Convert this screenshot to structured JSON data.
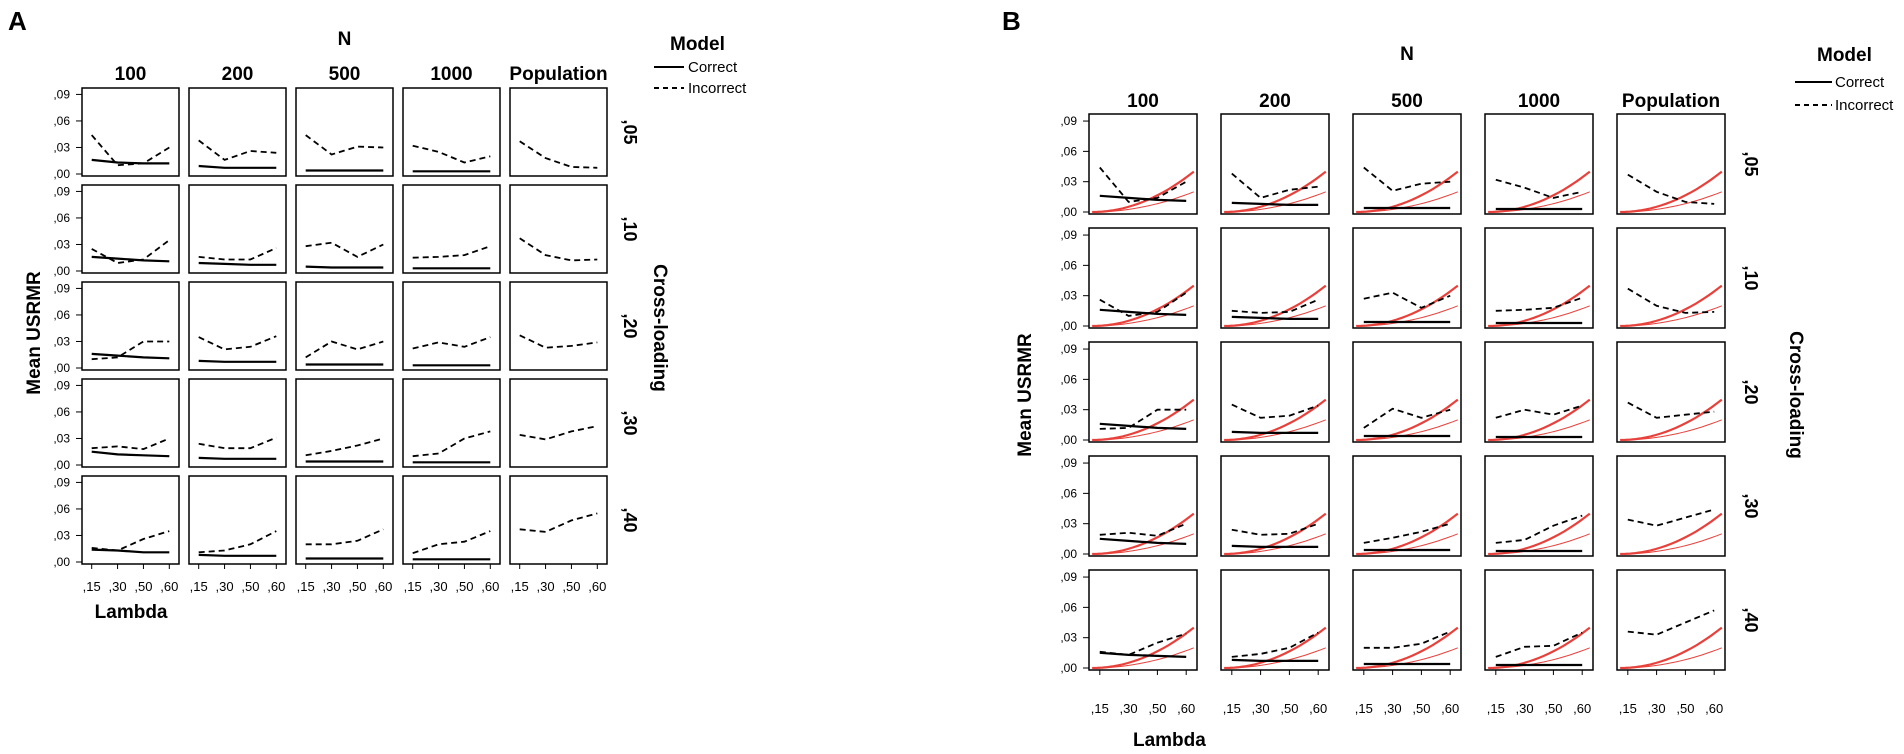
{
  "chart_data": [
    {
      "panel": "A",
      "type": "line",
      "title": "",
      "column_group_label": "N",
      "columns": [
        "100",
        "200",
        "500",
        "1000",
        "Population"
      ],
      "row_group_label": "Cross-loading",
      "rows": [
        ",05",
        ",10",
        ",20",
        ",30",
        ",40"
      ],
      "xlabel": "Lambda",
      "ylabel": "Mean USRMR",
      "x_categories": [
        ",15",
        ",30",
        ",50",
        ",60"
      ],
      "y_ticks": [
        ",00",
        ",03",
        ",06",
        ",09"
      ],
      "ylim": [
        0,
        0.095
      ],
      "legend": {
        "title": "Model",
        "entries": [
          "Correct",
          "Incorrect"
        ]
      },
      "cells": [
        {
          "row": ",05",
          "column": "100",
          "Correct": [
            0.016,
            0.013,
            0.012,
            0.012
          ],
          "Incorrect": [
            0.044,
            0.01,
            0.012,
            0.03
          ]
        },
        {
          "row": ",05",
          "column": "200",
          "Correct": [
            0.009,
            0.007,
            0.007,
            0.007
          ],
          "Incorrect": [
            0.038,
            0.016,
            0.026,
            0.024
          ]
        },
        {
          "row": ",05",
          "column": "500",
          "Correct": [
            0.004,
            0.004,
            0.004,
            0.004
          ],
          "Incorrect": [
            0.044,
            0.022,
            0.031,
            0.03
          ]
        },
        {
          "row": ",05",
          "column": "1000",
          "Correct": [
            0.003,
            0.003,
            0.003,
            0.003
          ],
          "Incorrect": [
            0.032,
            0.025,
            0.013,
            0.02
          ]
        },
        {
          "row": ",05",
          "column": "Population",
          "Incorrect": [
            0.037,
            0.018,
            0.008,
            0.007
          ]
        },
        {
          "row": ",10",
          "column": "100",
          "Correct": [
            0.016,
            0.014,
            0.012,
            0.011
          ],
          "Incorrect": [
            0.025,
            0.009,
            0.013,
            0.035
          ]
        },
        {
          "row": ",10",
          "column": "200",
          "Correct": [
            0.009,
            0.008,
            0.007,
            0.007
          ],
          "Incorrect": [
            0.016,
            0.013,
            0.013,
            0.026
          ]
        },
        {
          "row": ",10",
          "column": "500",
          "Correct": [
            0.005,
            0.004,
            0.004,
            0.004
          ],
          "Incorrect": [
            0.028,
            0.032,
            0.016,
            0.03
          ]
        },
        {
          "row": ",10",
          "column": "1000",
          "Correct": [
            0.003,
            0.003,
            0.003,
            0.003
          ],
          "Incorrect": [
            0.015,
            0.016,
            0.018,
            0.028
          ]
        },
        {
          "row": ",10",
          "column": "Population",
          "Incorrect": [
            0.037,
            0.018,
            0.012,
            0.013
          ]
        },
        {
          "row": ",20",
          "column": "100",
          "Correct": [
            0.016,
            0.014,
            0.012,
            0.011
          ],
          "Incorrect": [
            0.01,
            0.012,
            0.03,
            0.03
          ]
        },
        {
          "row": ",20",
          "column": "200",
          "Correct": [
            0.008,
            0.007,
            0.007,
            0.007
          ],
          "Incorrect": [
            0.035,
            0.021,
            0.024,
            0.036
          ]
        },
        {
          "row": ",20",
          "column": "500",
          "Correct": [
            0.004,
            0.004,
            0.004,
            0.004
          ],
          "Incorrect": [
            0.012,
            0.03,
            0.021,
            0.03
          ]
        },
        {
          "row": ",20",
          "column": "1000",
          "Correct": [
            0.003,
            0.003,
            0.003,
            0.003
          ],
          "Incorrect": [
            0.022,
            0.029,
            0.024,
            0.035
          ]
        },
        {
          "row": ",20",
          "column": "Population",
          "Incorrect": [
            0.037,
            0.023,
            0.025,
            0.029
          ]
        },
        {
          "row": ",30",
          "column": "100",
          "Correct": [
            0.015,
            0.012,
            0.011,
            0.01
          ],
          "Incorrect": [
            0.019,
            0.021,
            0.018,
            0.03
          ]
        },
        {
          "row": ",30",
          "column": "200",
          "Correct": [
            0.008,
            0.007,
            0.007,
            0.007
          ],
          "Incorrect": [
            0.024,
            0.019,
            0.019,
            0.031
          ]
        },
        {
          "row": ",30",
          "column": "500",
          "Correct": [
            0.004,
            0.004,
            0.004,
            0.004
          ],
          "Incorrect": [
            0.011,
            0.016,
            0.022,
            0.03
          ]
        },
        {
          "row": ",30",
          "column": "1000",
          "Correct": [
            0.003,
            0.003,
            0.003,
            0.003
          ],
          "Incorrect": [
            0.01,
            0.013,
            0.03,
            0.038
          ]
        },
        {
          "row": ",30",
          "column": "Population",
          "Incorrect": [
            0.034,
            0.029,
            0.038,
            0.044
          ]
        },
        {
          "row": ",40",
          "column": "100",
          "Correct": [
            0.014,
            0.013,
            0.011,
            0.011
          ],
          "Incorrect": [
            0.016,
            0.013,
            0.026,
            0.035
          ]
        },
        {
          "row": ",40",
          "column": "200",
          "Correct": [
            0.008,
            0.007,
            0.007,
            0.007
          ],
          "Incorrect": [
            0.011,
            0.013,
            0.02,
            0.035
          ]
        },
        {
          "row": ",40",
          "column": "500",
          "Correct": [
            0.004,
            0.004,
            0.004,
            0.004
          ],
          "Incorrect": [
            0.02,
            0.02,
            0.024,
            0.037
          ]
        },
        {
          "row": ",40",
          "column": "1000",
          "Correct": [
            0.003,
            0.003,
            0.003,
            0.003
          ],
          "Incorrect": [
            0.01,
            0.02,
            0.023,
            0.035
          ]
        },
        {
          "row": ",40",
          "column": "Population",
          "Incorrect": [
            0.037,
            0.034,
            0.047,
            0.055
          ]
        }
      ]
    },
    {
      "panel": "B",
      "type": "line",
      "title": "",
      "column_group_label": "N",
      "columns": [
        "100",
        "200",
        "500",
        "1000",
        "Population"
      ],
      "row_group_label": "Cross-loading",
      "rows": [
        ",05",
        ",10",
        ",20",
        ",30",
        ",40"
      ],
      "xlabel": "Lambda",
      "ylabel": "Mean USRMR",
      "x_categories": [
        ",15",
        ",30",
        ",50",
        ",60"
      ],
      "y_ticks": [
        ",00",
        ",03",
        ",06",
        ",09"
      ],
      "ylim": [
        0,
        0.095
      ],
      "legend": {
        "title": "Model",
        "entries": [
          "Correct",
          "Incorrect"
        ]
      },
      "reference_curves": {
        "color": "#e8413b",
        "x_range": [
          0.15,
          0.6
        ],
        "thick_curve_start_end": [
          0.0,
          0.04
        ],
        "thin_curve_start_end": [
          0.0,
          0.02
        ]
      },
      "cells": [
        {
          "row": ",05",
          "column": "100",
          "Correct": [
            0.016,
            0.014,
            0.012,
            0.011
          ],
          "Incorrect": [
            0.044,
            0.01,
            0.014,
            0.03
          ]
        },
        {
          "row": ",05",
          "column": "200",
          "Correct": [
            0.009,
            0.008,
            0.007,
            0.007
          ],
          "Incorrect": [
            0.038,
            0.014,
            0.022,
            0.025
          ]
        },
        {
          "row": ",05",
          "column": "500",
          "Correct": [
            0.004,
            0.004,
            0.004,
            0.004
          ],
          "Incorrect": [
            0.044,
            0.021,
            0.028,
            0.03
          ]
        },
        {
          "row": ",05",
          "column": "1000",
          "Correct": [
            0.003,
            0.003,
            0.003,
            0.003
          ],
          "Incorrect": [
            0.032,
            0.024,
            0.014,
            0.02
          ]
        },
        {
          "row": ",05",
          "column": "Population",
          "Incorrect": [
            0.037,
            0.02,
            0.01,
            0.008
          ]
        },
        {
          "row": ",10",
          "column": "100",
          "Correct": [
            0.016,
            0.014,
            0.012,
            0.011
          ],
          "Incorrect": [
            0.026,
            0.01,
            0.014,
            0.033
          ]
        },
        {
          "row": ",10",
          "column": "200",
          "Correct": [
            0.009,
            0.008,
            0.007,
            0.007
          ],
          "Incorrect": [
            0.015,
            0.013,
            0.014,
            0.026
          ]
        },
        {
          "row": ",10",
          "column": "500",
          "Correct": [
            0.004,
            0.004,
            0.004,
            0.004
          ],
          "Incorrect": [
            0.027,
            0.033,
            0.018,
            0.03
          ]
        },
        {
          "row": ",10",
          "column": "1000",
          "Correct": [
            0.003,
            0.003,
            0.003,
            0.003
          ],
          "Incorrect": [
            0.015,
            0.016,
            0.018,
            0.028
          ]
        },
        {
          "row": ",10",
          "column": "Population",
          "Incorrect": [
            0.037,
            0.02,
            0.013,
            0.014
          ]
        },
        {
          "row": ",20",
          "column": "100",
          "Correct": [
            0.016,
            0.014,
            0.012,
            0.011
          ],
          "Incorrect": [
            0.011,
            0.012,
            0.03,
            0.03
          ]
        },
        {
          "row": ",20",
          "column": "200",
          "Correct": [
            0.008,
            0.007,
            0.007,
            0.007
          ],
          "Incorrect": [
            0.035,
            0.022,
            0.024,
            0.034
          ]
        },
        {
          "row": ",20",
          "column": "500",
          "Correct": [
            0.004,
            0.004,
            0.004,
            0.004
          ],
          "Incorrect": [
            0.012,
            0.031,
            0.022,
            0.03
          ]
        },
        {
          "row": ",20",
          "column": "1000",
          "Correct": [
            0.003,
            0.003,
            0.003,
            0.003
          ],
          "Incorrect": [
            0.022,
            0.03,
            0.025,
            0.034
          ]
        },
        {
          "row": ",20",
          "column": "Population",
          "Incorrect": [
            0.037,
            0.022,
            0.025,
            0.028
          ]
        },
        {
          "row": ",30",
          "column": "100",
          "Correct": [
            0.015,
            0.013,
            0.011,
            0.01
          ],
          "Incorrect": [
            0.019,
            0.021,
            0.018,
            0.03
          ]
        },
        {
          "row": ",30",
          "column": "200",
          "Correct": [
            0.008,
            0.007,
            0.007,
            0.007
          ],
          "Incorrect": [
            0.024,
            0.019,
            0.02,
            0.03
          ]
        },
        {
          "row": ",30",
          "column": "500",
          "Correct": [
            0.004,
            0.004,
            0.004,
            0.004
          ],
          "Incorrect": [
            0.011,
            0.016,
            0.022,
            0.03
          ]
        },
        {
          "row": ",30",
          "column": "1000",
          "Correct": [
            0.003,
            0.003,
            0.003,
            0.003
          ],
          "Incorrect": [
            0.011,
            0.014,
            0.028,
            0.038
          ]
        },
        {
          "row": ",30",
          "column": "Population",
          "Incorrect": [
            0.034,
            0.028,
            0.036,
            0.044
          ]
        },
        {
          "row": ",40",
          "column": "100",
          "Correct": [
            0.015,
            0.013,
            0.012,
            0.011
          ],
          "Incorrect": [
            0.016,
            0.013,
            0.025,
            0.034
          ]
        },
        {
          "row": ",40",
          "column": "200",
          "Correct": [
            0.008,
            0.007,
            0.007,
            0.007
          ],
          "Incorrect": [
            0.011,
            0.014,
            0.02,
            0.035
          ]
        },
        {
          "row": ",40",
          "column": "500",
          "Correct": [
            0.004,
            0.004,
            0.004,
            0.004
          ],
          "Incorrect": [
            0.02,
            0.02,
            0.024,
            0.036
          ]
        },
        {
          "row": ",40",
          "column": "1000",
          "Correct": [
            0.003,
            0.003,
            0.003,
            0.003
          ],
          "Incorrect": [
            0.011,
            0.021,
            0.022,
            0.035
          ]
        },
        {
          "row": ",40",
          "column": "Population",
          "Incorrect": [
            0.036,
            0.033,
            0.045,
            0.057
          ]
        }
      ]
    }
  ]
}
